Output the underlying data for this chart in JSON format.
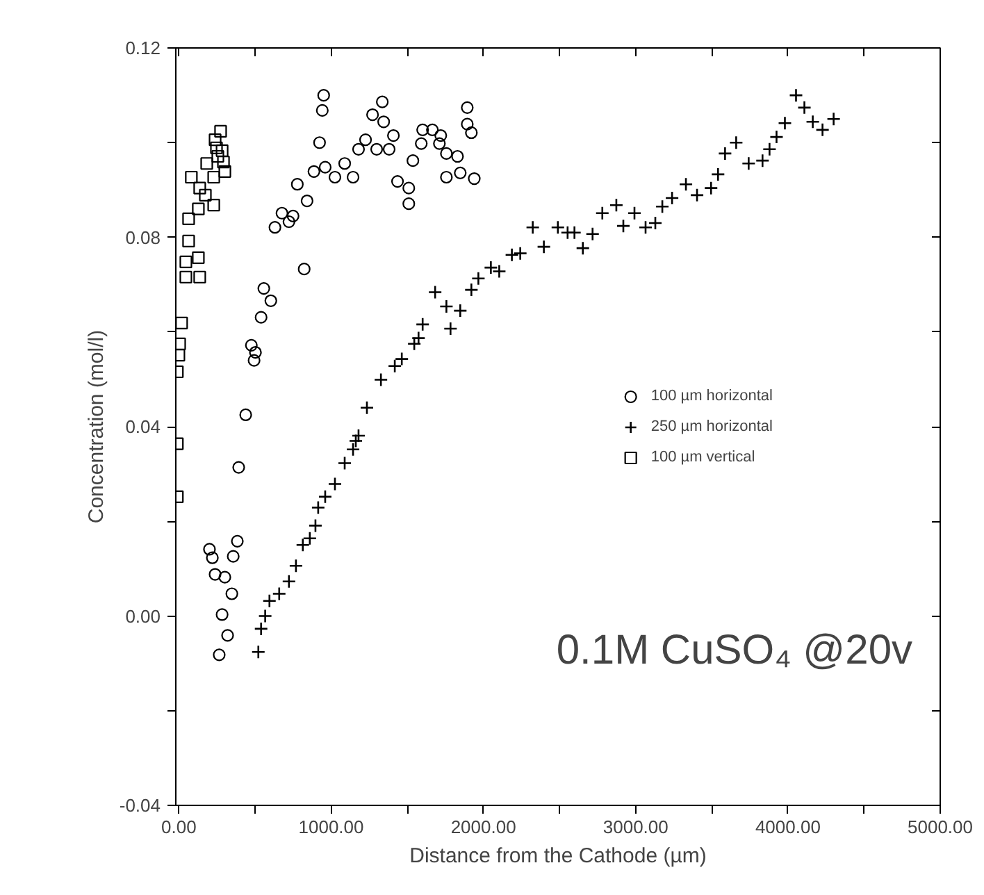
{
  "chart_data": {
    "type": "scatter",
    "xlabel": "Distance from the Cathode (µm)",
    "ylabel": "Concentration (mol/l)",
    "xlim": [
      -20,
      5000
    ],
    "ylim": [
      -0.04,
      0.12
    ],
    "xticks": [
      {
        "value": 0,
        "label": "0.00"
      },
      {
        "value": 500,
        "label": null
      },
      {
        "value": 1000,
        "label": "1000.00"
      },
      {
        "value": 1500,
        "label": null
      },
      {
        "value": 2000,
        "label": "2000.00"
      },
      {
        "value": 2500,
        "label": null
      },
      {
        "value": 3000,
        "label": "3000.00"
      },
      {
        "value": 3500,
        "label": null
      },
      {
        "value": 4000,
        "label": "4000.00"
      },
      {
        "value": 4500,
        "label": null
      },
      {
        "value": 5000,
        "label": "5000.00"
      }
    ],
    "yticks": [
      -0.04,
      {
        "value": -0.02,
        "label": null
      },
      {
        "value": 0,
        "label": "0.00"
      },
      {
        "value": 0.02,
        "label": null
      },
      0.04,
      {
        "value": 0.06,
        "label": null
      },
      0.08,
      {
        "value": 0.1,
        "label": null
      },
      0.12
    ],
    "grid": false,
    "legend": "right",
    "annotations": [
      "0.1M CuSO₄ @20v"
    ],
    "series": [
      {
        "name": "100 µm horizontal",
        "color": "#000000",
        "marker": "circle",
        "x": [
          951,
          942,
          924,
          778,
          842,
          677,
          750,
          631,
          723,
          823,
          558,
          604,
          540,
          476,
          503,
          494,
          439,
          887,
          961,
          1025,
          1089,
          1144,
          1180,
          1226,
          1272,
          1336,
          1345,
          1299,
          1381,
          1409,
          1436,
          1510,
          1510,
          1537,
          1592,
          1601,
          1665,
          1720,
          1711,
          1757,
          1830,
          1757,
          1848,
          1894,
          1894,
          1921,
          1940,
          393,
          384,
          357,
          201,
          220,
          238,
          302,
          348,
          284,
          320,
          265
        ],
        "values": [
          0.11,
          0.1068,
          0.1,
          0.0912,
          0.0877,
          0.0851,
          0.0845,
          0.0821,
          0.0833,
          0.0733,
          0.0692,
          0.0666,
          0.0631,
          0.0572,
          0.0557,
          0.054,
          0.0425,
          0.0939,
          0.0948,
          0.0927,
          0.0956,
          0.0927,
          0.0986,
          0.1006,
          0.1059,
          0.1086,
          0.1044,
          0.0986,
          0.0986,
          0.1015,
          0.0918,
          0.0904,
          0.0871,
          0.0962,
          0.0998,
          0.1027,
          0.1027,
          0.1015,
          0.0998,
          0.0977,
          0.0971,
          0.0927,
          0.0936,
          0.1074,
          0.1039,
          0.1021,
          0.0924,
          0.0314,
          0.0158,
          0.0126,
          0.0141,
          0.0123,
          0.0088,
          0.0082,
          0.0047,
          0.0003,
          -0.0041,
          -0.0082
        ]
      },
      {
        "name": "250 µm horizontal",
        "color": "#000000",
        "marker": "cross",
        "x": [
          522,
          540,
          567,
          595,
          659,
          723,
          769,
          814,
          860,
          897,
          915,
          961,
          1025,
          1089,
          1144,
          1162,
          1180,
          1235,
          1327,
          1418,
          1464,
          1546,
          1574,
          1601,
          1683,
          1757,
          1784,
          1848,
          1921,
          1967,
          2049,
          2104,
          2187,
          2242,
          2324,
          2397,
          2489,
          2553,
          2598,
          2653,
          2717,
          2781,
          2873,
          2919,
          2992,
          3065,
          3129,
          3175,
          3239,
          3330,
          3403,
          3495,
          3541,
          3587,
          3660,
          3742,
          3833,
          3879,
          3925,
          3980,
          4053,
          4108,
          4163,
          4227,
          4300
        ],
        "values": [
          -0.0076,
          -0.0027,
          0.0,
          0.0032,
          0.0047,
          0.0073,
          0.0106,
          0.015,
          0.0164,
          0.0191,
          0.0229,
          0.0252,
          0.0279,
          0.0323,
          0.0352,
          0.037,
          0.0381,
          0.044,
          0.0499,
          0.0528,
          0.0543,
          0.0575,
          0.0587,
          0.0616,
          0.0684,
          0.0654,
          0.0607,
          0.0645,
          0.0689,
          0.0713,
          0.0736,
          0.0728,
          0.0763,
          0.0766,
          0.0821,
          0.078,
          0.0821,
          0.081,
          0.081,
          0.0777,
          0.0807,
          0.0851,
          0.0868,
          0.0824,
          0.0851,
          0.0821,
          0.083,
          0.0865,
          0.0883,
          0.0912,
          0.0889,
          0.0904,
          0.0933,
          0.0977,
          0.1,
          0.0956,
          0.0962,
          0.0986,
          0.1012,
          0.1041,
          0.11,
          0.1074,
          0.1044,
          0.1027,
          0.105
        ]
      },
      {
        "name": "100 µm vertical",
        "color": "#000000",
        "marker": "square",
        "x": [
          274,
          238,
          247,
          284,
          256,
          293,
          183,
          302,
          82,
          229,
          137,
          174,
          229,
          128,
          64,
          64,
          128,
          46,
          46,
          137,
          18,
          5,
          0,
          -10,
          -10,
          -10
        ],
        "values": [
          0.1024,
          0.1006,
          0.0989,
          0.0983,
          0.0971,
          0.0959,
          0.0956,
          0.0939,
          0.0927,
          0.0927,
          0.0904,
          0.0889,
          0.0868,
          0.086,
          0.0839,
          0.0792,
          0.0757,
          0.0748,
          0.0716,
          0.0716,
          0.0619,
          0.0575,
          0.0551,
          0.0516,
          0.0364,
          0.0252
        ]
      }
    ]
  }
}
